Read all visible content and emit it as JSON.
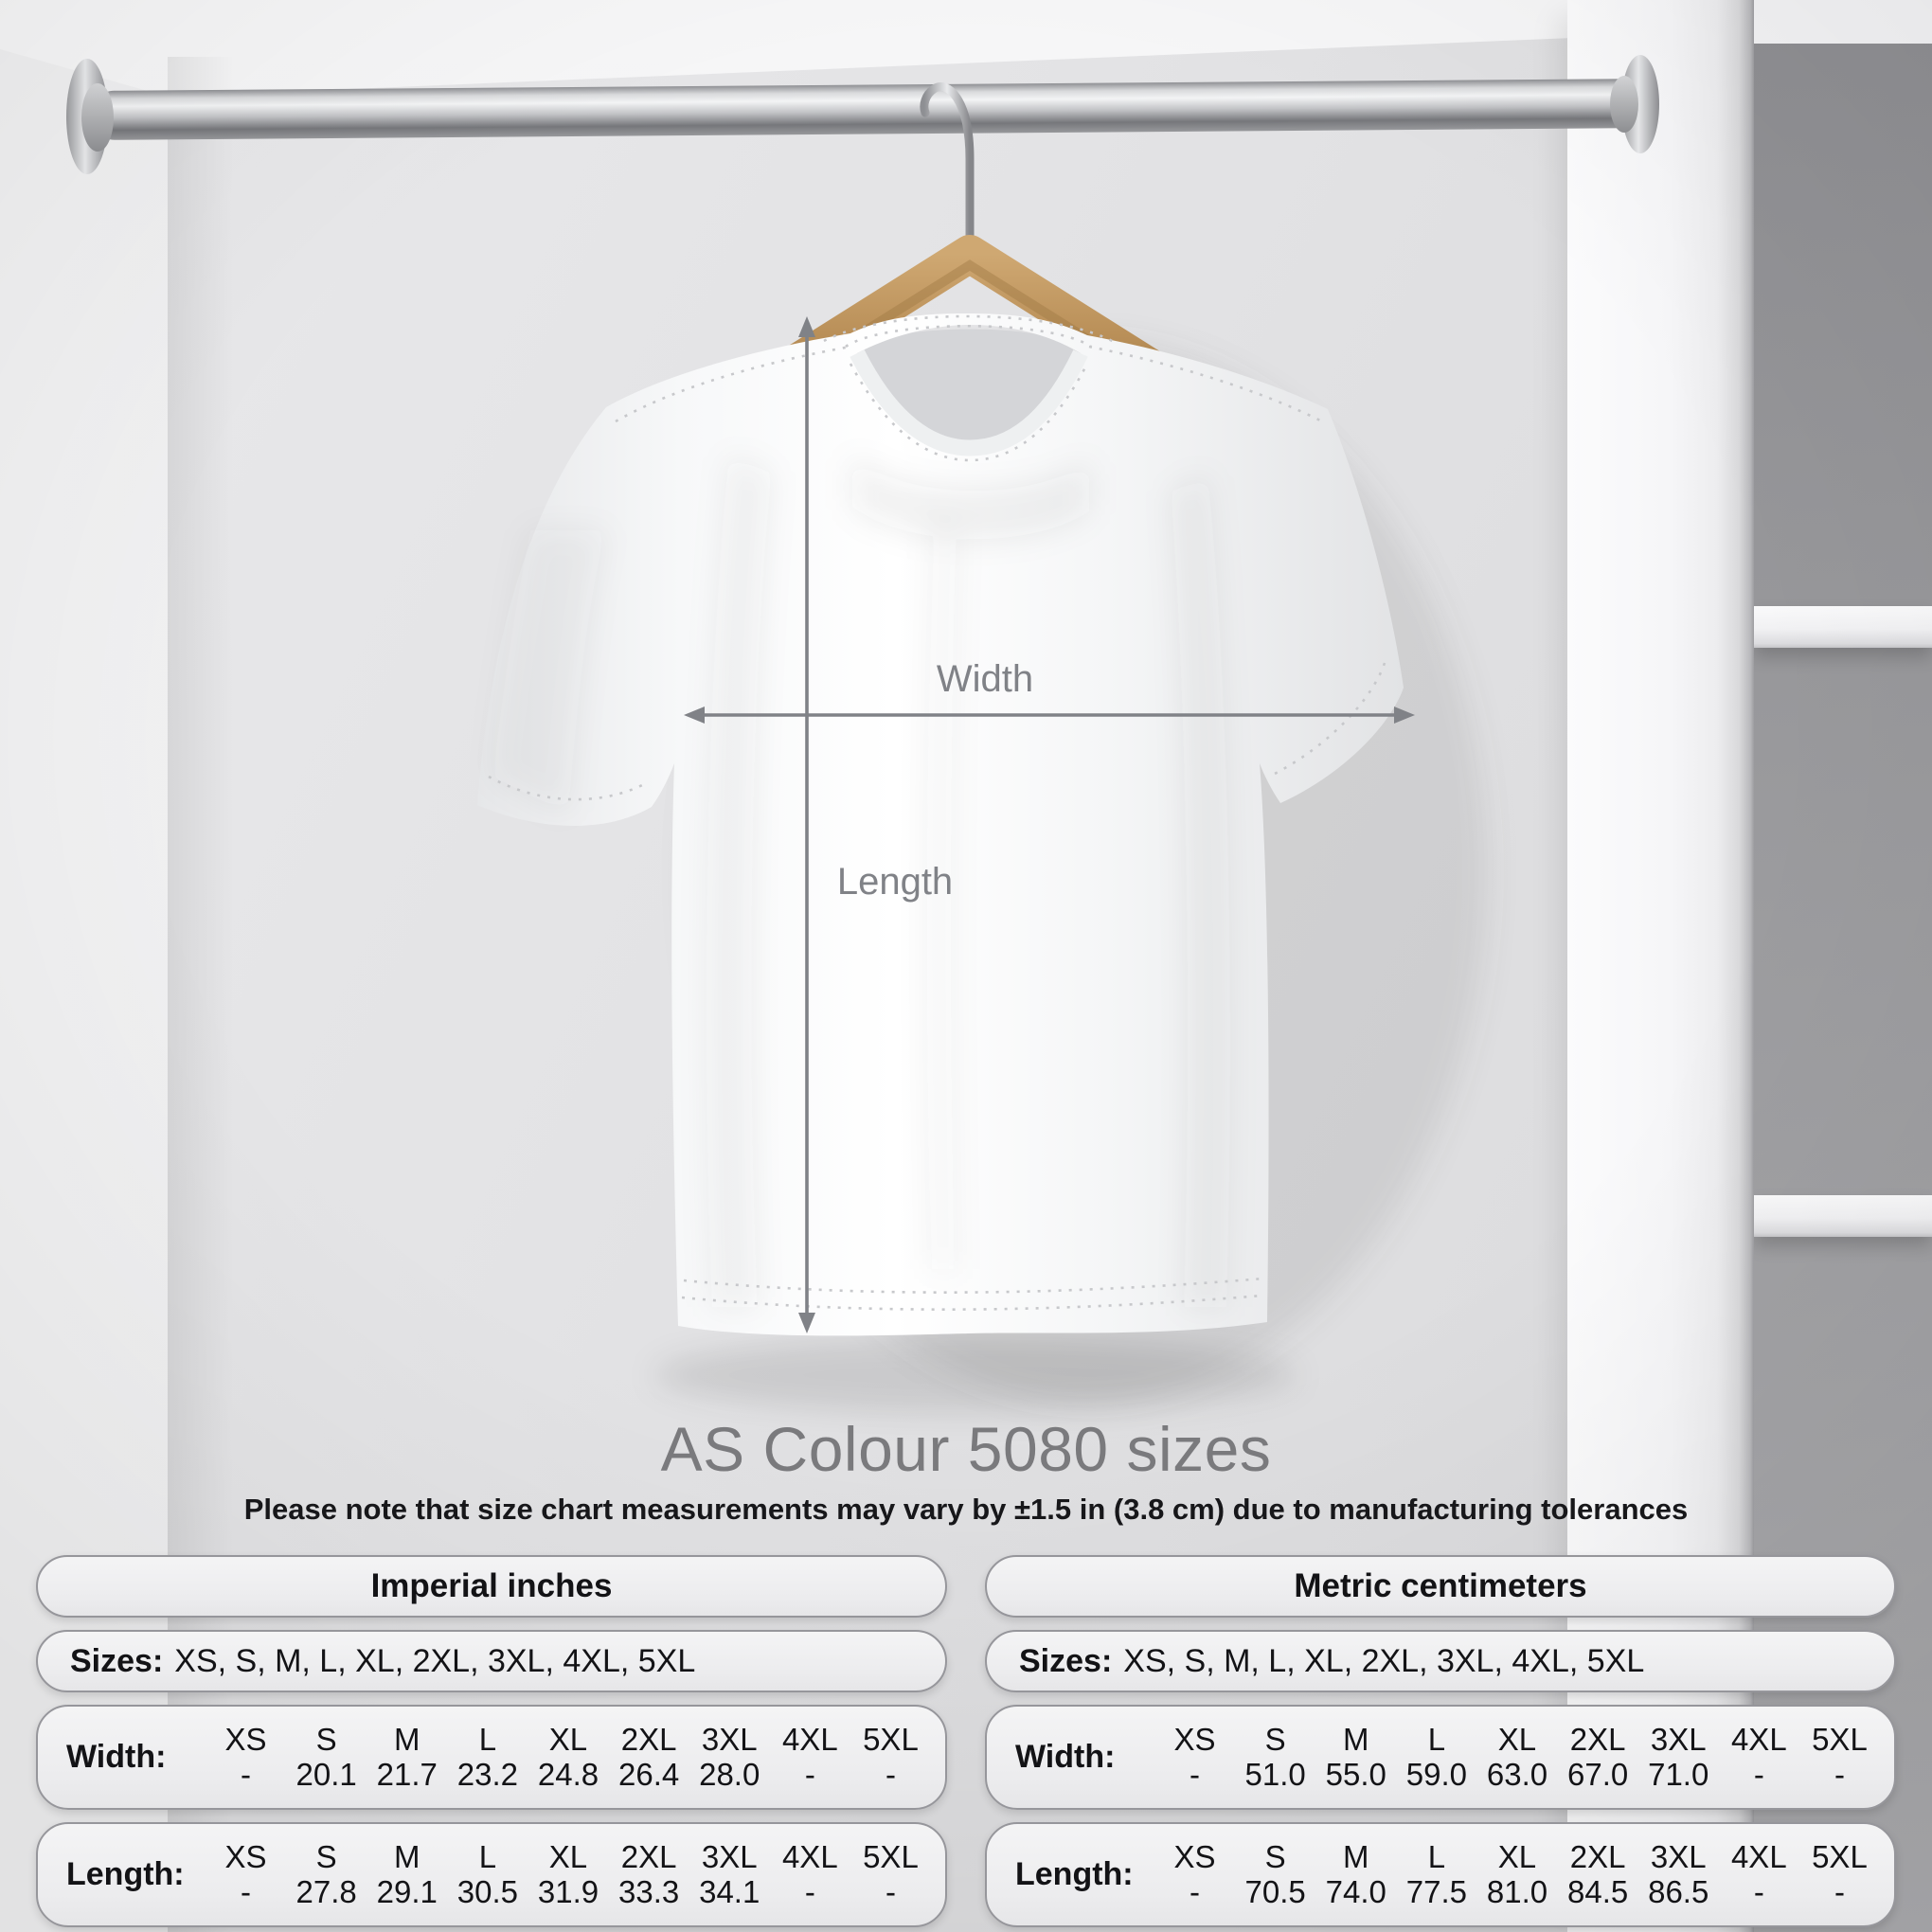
{
  "annotations": {
    "width_label": "Width",
    "length_label": "Length"
  },
  "title": "AS Colour 5080 sizes",
  "subtitle": "Please note that size chart measurements may vary by ±1.5 in (3.8 cm) due to manufacturing tolerances",
  "tables": [
    {
      "header": "Imperial inches",
      "sizes_label": "Sizes:",
      "sizes_list": "XS, S, M, L, XL, 2XL, 3XL, 4XL, 5XL",
      "columns": [
        "XS",
        "S",
        "M",
        "L",
        "XL",
        "2XL",
        "3XL",
        "4XL",
        "5XL"
      ],
      "rows": [
        {
          "label": "Width:",
          "values": [
            "-",
            "20.1",
            "21.7",
            "23.2",
            "24.8",
            "26.4",
            "28.0",
            "-",
            "-"
          ]
        },
        {
          "label": "Length:",
          "values": [
            "-",
            "27.8",
            "29.1",
            "30.5",
            "31.9",
            "33.3",
            "34.1",
            "-",
            "-"
          ]
        }
      ]
    },
    {
      "header": "Metric centimeters",
      "sizes_label": "Sizes:",
      "sizes_list": "XS, S, M, L, XL, 2XL, 3XL, 4XL, 5XL",
      "columns": [
        "XS",
        "S",
        "M",
        "L",
        "XL",
        "2XL",
        "3XL",
        "4XL",
        "5XL"
      ],
      "rows": [
        {
          "label": "Width:",
          "values": [
            "-",
            "51.0",
            "55.0",
            "59.0",
            "63.0",
            "67.0",
            "71.0",
            "-",
            "-"
          ]
        },
        {
          "label": "Length:",
          "values": [
            "-",
            "70.5",
            "74.0",
            "77.5",
            "81.0",
            "84.5",
            "86.5",
            "-",
            "-"
          ]
        }
      ]
    }
  ],
  "colors": {
    "annotation_gray": "#808287",
    "title_gray": "#7a7a7d",
    "text_dark": "#17171a",
    "pill_border": "#96969b",
    "hanger_wood": "#b98f58",
    "rod_silver": "#c2c3c6",
    "shirt_white": "#fafbfb",
    "opening_gray": "#98989b"
  }
}
